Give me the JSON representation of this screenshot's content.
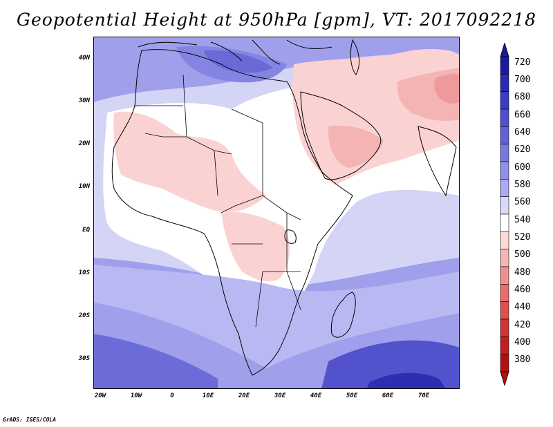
{
  "title": "Geopotential Height at 950hPa [gpm], VT: 2017092218",
  "credit": "GrADS: IGES/COLA",
  "map": {
    "lat_labels": [
      "40N",
      "30N",
      "20N",
      "10N",
      "EQ",
      "10S",
      "20S",
      "30S"
    ],
    "lat_values": [
      40,
      30,
      20,
      10,
      0,
      -10,
      -20,
      -30
    ],
    "lon_labels": [
      "20W",
      "10W",
      "0",
      "10E",
      "20E",
      "30E",
      "40E",
      "50E",
      "60E",
      "70E"
    ],
    "lon_values": [
      -20,
      -10,
      0,
      10,
      20,
      30,
      40,
      50,
      60,
      70
    ],
    "lon_range": [
      -22,
      80
    ],
    "lat_range": [
      -37,
      45
    ]
  },
  "colorbar": {
    "levels": [
      "720",
      "700",
      "680",
      "660",
      "640",
      "620",
      "600",
      "580",
      "560",
      "540",
      "520",
      "500",
      "480",
      "460",
      "440",
      "420",
      "400",
      "380"
    ],
    "colors": [
      "#1a1aa0",
      "#2a2ab4",
      "#3b3bc4",
      "#4f4fd0",
      "#6262d8",
      "#7878e0",
      "#9090e8",
      "#aaaaf0",
      "#d8d8f8",
      "#ffffff",
      "#fcd8d8",
      "#f7b4b4",
      "#ef9090",
      "#e66e6e",
      "#dc5050",
      "#d03434",
      "#c21e1e",
      "#b01010"
    ]
  }
}
